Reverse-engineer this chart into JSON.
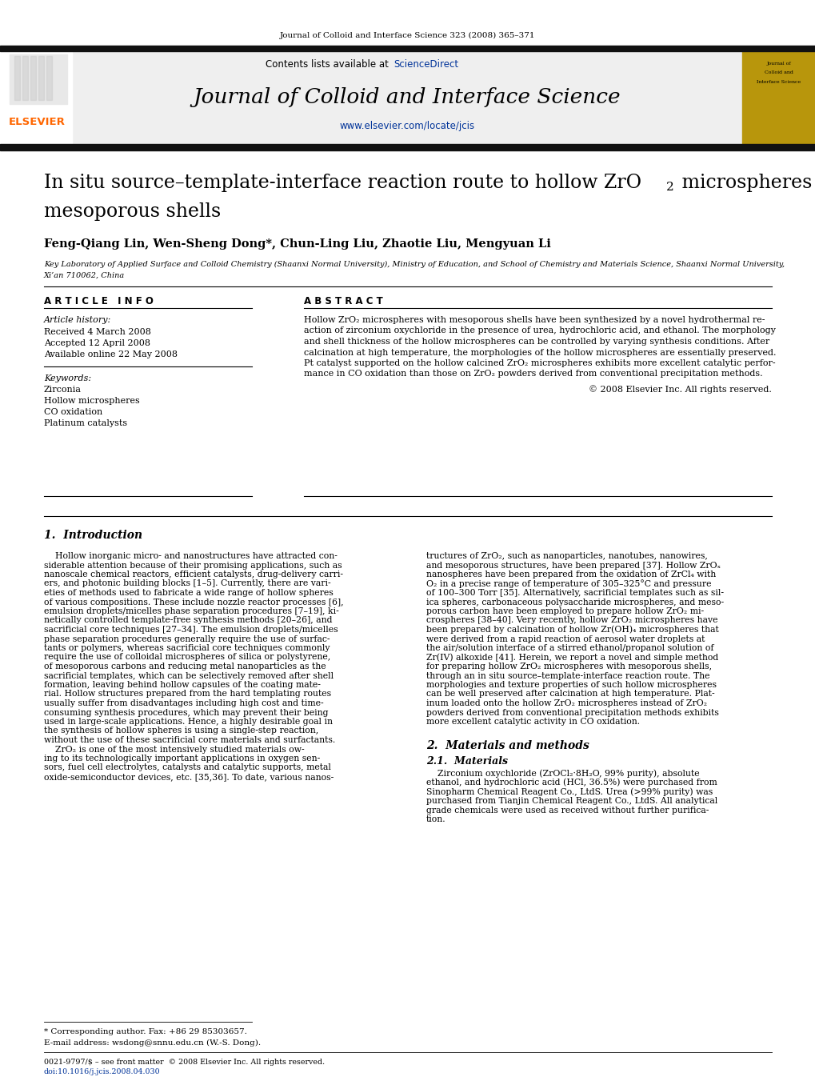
{
  "journal_citation": "Journal of Colloid and Interface Science 323 (2008) 365–371",
  "journal_name": "Journal of Colloid and Interface Science",
  "journal_url": "www.elsevier.com/locate/jcis",
  "contents_text": "Contents lists available at ",
  "sciencedirect_text": "ScienceDirect",
  "elsevier_color": "#FF6600",
  "sciencedirect_color": "#003399",
  "link_color": "#003399",
  "authors": "Feng-Qiang Lin, Wen-Sheng Dong*, Chun-Ling Liu, Zhaotie Liu, Mengyuan Li",
  "affiliation_line1": "Key Laboratory of Applied Surface and Colloid Chemistry (Shaanxi Normal University), Ministry of Education, and School of Chemistry and Materials Science, Shaanxi Normal University,",
  "affiliation_line2": "Xi’an 710062, China",
  "article_info_header": "A R T I C L E   I N F O",
  "abstract_header": "A B S T R A C T",
  "article_history_label": "Article history:",
  "received": "Received 4 March 2008",
  "accepted": "Accepted 12 April 2008",
  "available": "Available online 22 May 2008",
  "keywords_label": "Keywords:",
  "keywords": [
    "Zirconia",
    "Hollow microspheres",
    "CO oxidation",
    "Platinum catalysts"
  ],
  "abstract_lines": [
    "Hollow ZrO₂ microspheres with mesoporous shells have been synthesized by a novel hydrothermal re-",
    "action of zirconium oxychloride in the presence of urea, hydrochloric acid, and ethanol. The morphology",
    "and shell thickness of the hollow microspheres can be controlled by varying synthesis conditions. After",
    "calcination at high temperature, the morphologies of the hollow microspheres are essentially preserved.",
    "Pt catalyst supported on the hollow calcined ZrO₂ microspheres exhibits more excellent catalytic perfor-",
    "mance in CO oxidation than those on ZrO₂ powders derived from conventional precipitation methods."
  ],
  "copyright": "© 2008 Elsevier Inc. All rights reserved.",
  "intro_heading": "1.  Introduction",
  "intro_col1_lines": [
    "    Hollow inorganic micro- and nanostructures have attracted con-",
    "siderable attention because of their promising applications, such as",
    "nanoscale chemical reactors, efficient catalysts, drug-delivery carri-",
    "ers, and photonic building blocks [1–5]. Currently, there are vari-",
    "eties of methods used to fabricate a wide range of hollow spheres",
    "of various compositions. These include nozzle reactor processes [6],",
    "emulsion droplets/micelles phase separation procedures [7–19], ki-",
    "netically controlled template-free synthesis methods [20–26], and",
    "sacrificial core techniques [27–34]. The emulsion droplets/micelles",
    "phase separation procedures generally require the use of surfac-",
    "tants or polymers, whereas sacrificial core techniques commonly",
    "require the use of colloidal microspheres of silica or polystyrene,",
    "of mesoporous carbons and reducing metal nanoparticles as the",
    "sacrificial templates, which can be selectively removed after shell",
    "formation, leaving behind hollow capsules of the coating mate-",
    "rial. Hollow structures prepared from the hard templating routes",
    "usually suffer from disadvantages including high cost and time-",
    "consuming synthesis procedures, which may prevent their being",
    "used in large-scale applications. Hence, a highly desirable goal in",
    "the synthesis of hollow spheres is using a single-step reaction,",
    "without the use of these sacrificial core materials and surfactants.",
    "    ZrO₂ is one of the most intensively studied materials ow-",
    "ing to its technologically important applications in oxygen sen-",
    "sors, fuel cell electrolytes, catalysts and catalytic supports, metal",
    "oxide-semiconductor devices, etc. [35,36]. To date, various nanos-"
  ],
  "intro_col2_lines": [
    "tructures of ZrO₂, such as nanoparticles, nanotubes, nanowires,",
    "and mesoporous structures, have been prepared [37]. Hollow ZrOₓ",
    "nanospheres have been prepared from the oxidation of ZrCl₄ with",
    "O₂ in a precise range of temperature of 305–325°C and pressure",
    "of 100–300 Torr [35]. Alternatively, sacrificial templates such as sil-",
    "ica spheres, carbonaceous polysaccharide microspheres, and meso-",
    "porous carbon have been employed to prepare hollow ZrO₂ mi-",
    "crospheres [38–40]. Very recently, hollow ZrO₂ microspheres have",
    "been prepared by calcination of hollow Zr(OH)₄ microspheres that",
    "were derived from a rapid reaction of aerosol water droplets at",
    "the air/solution interface of a stirred ethanol/propanol solution of",
    "Zr(IV) alkoxide [41]. Herein, we report a novel and simple method",
    "for preparing hollow ZrO₂ microspheres with mesoporous shells,",
    "through an in situ source–template-interface reaction route. The",
    "morphologies and texture properties of such hollow microspheres",
    "can be well preserved after calcination at high temperature. Plat-",
    "inum loaded onto the hollow ZrO₂ microspheres instead of ZrO₂",
    "powders derived from conventional precipitation methods exhibits",
    "more excellent catalytic activity in CO oxidation."
  ],
  "section2_heading": "2.  Materials and methods",
  "section21_heading": "2.1.  Materials",
  "section21_lines": [
    "    Zirconium oxychloride (ZrOCl₂·8H₂O, 99% purity), absolute",
    "ethanol, and hydrochloric acid (HCl, 36.5%) were purchased from",
    "Sinopharm Chemical Reagent Co., LtdS. Urea (>99% purity) was",
    "purchased from Tianjin Chemical Reagent Co., LtdS. All analytical",
    "grade chemicals were used as received without further purifica-",
    "tion."
  ],
  "footnote1": "* Corresponding author. Fax: +86 29 85303657.",
  "footnote2": "E-mail address: wsdong@snnu.edu.cn (W.-S. Dong).",
  "footnote3": "0021-9797/$ – see front matter  © 2008 Elsevier Inc. All rights reserved.",
  "footnote4": "doi:10.1016/j.jcis.2008.04.030",
  "header_bg": "#efefef",
  "gold_box_color": "#b8960c",
  "dark_line_color": "#111111",
  "text_color": "#000000"
}
